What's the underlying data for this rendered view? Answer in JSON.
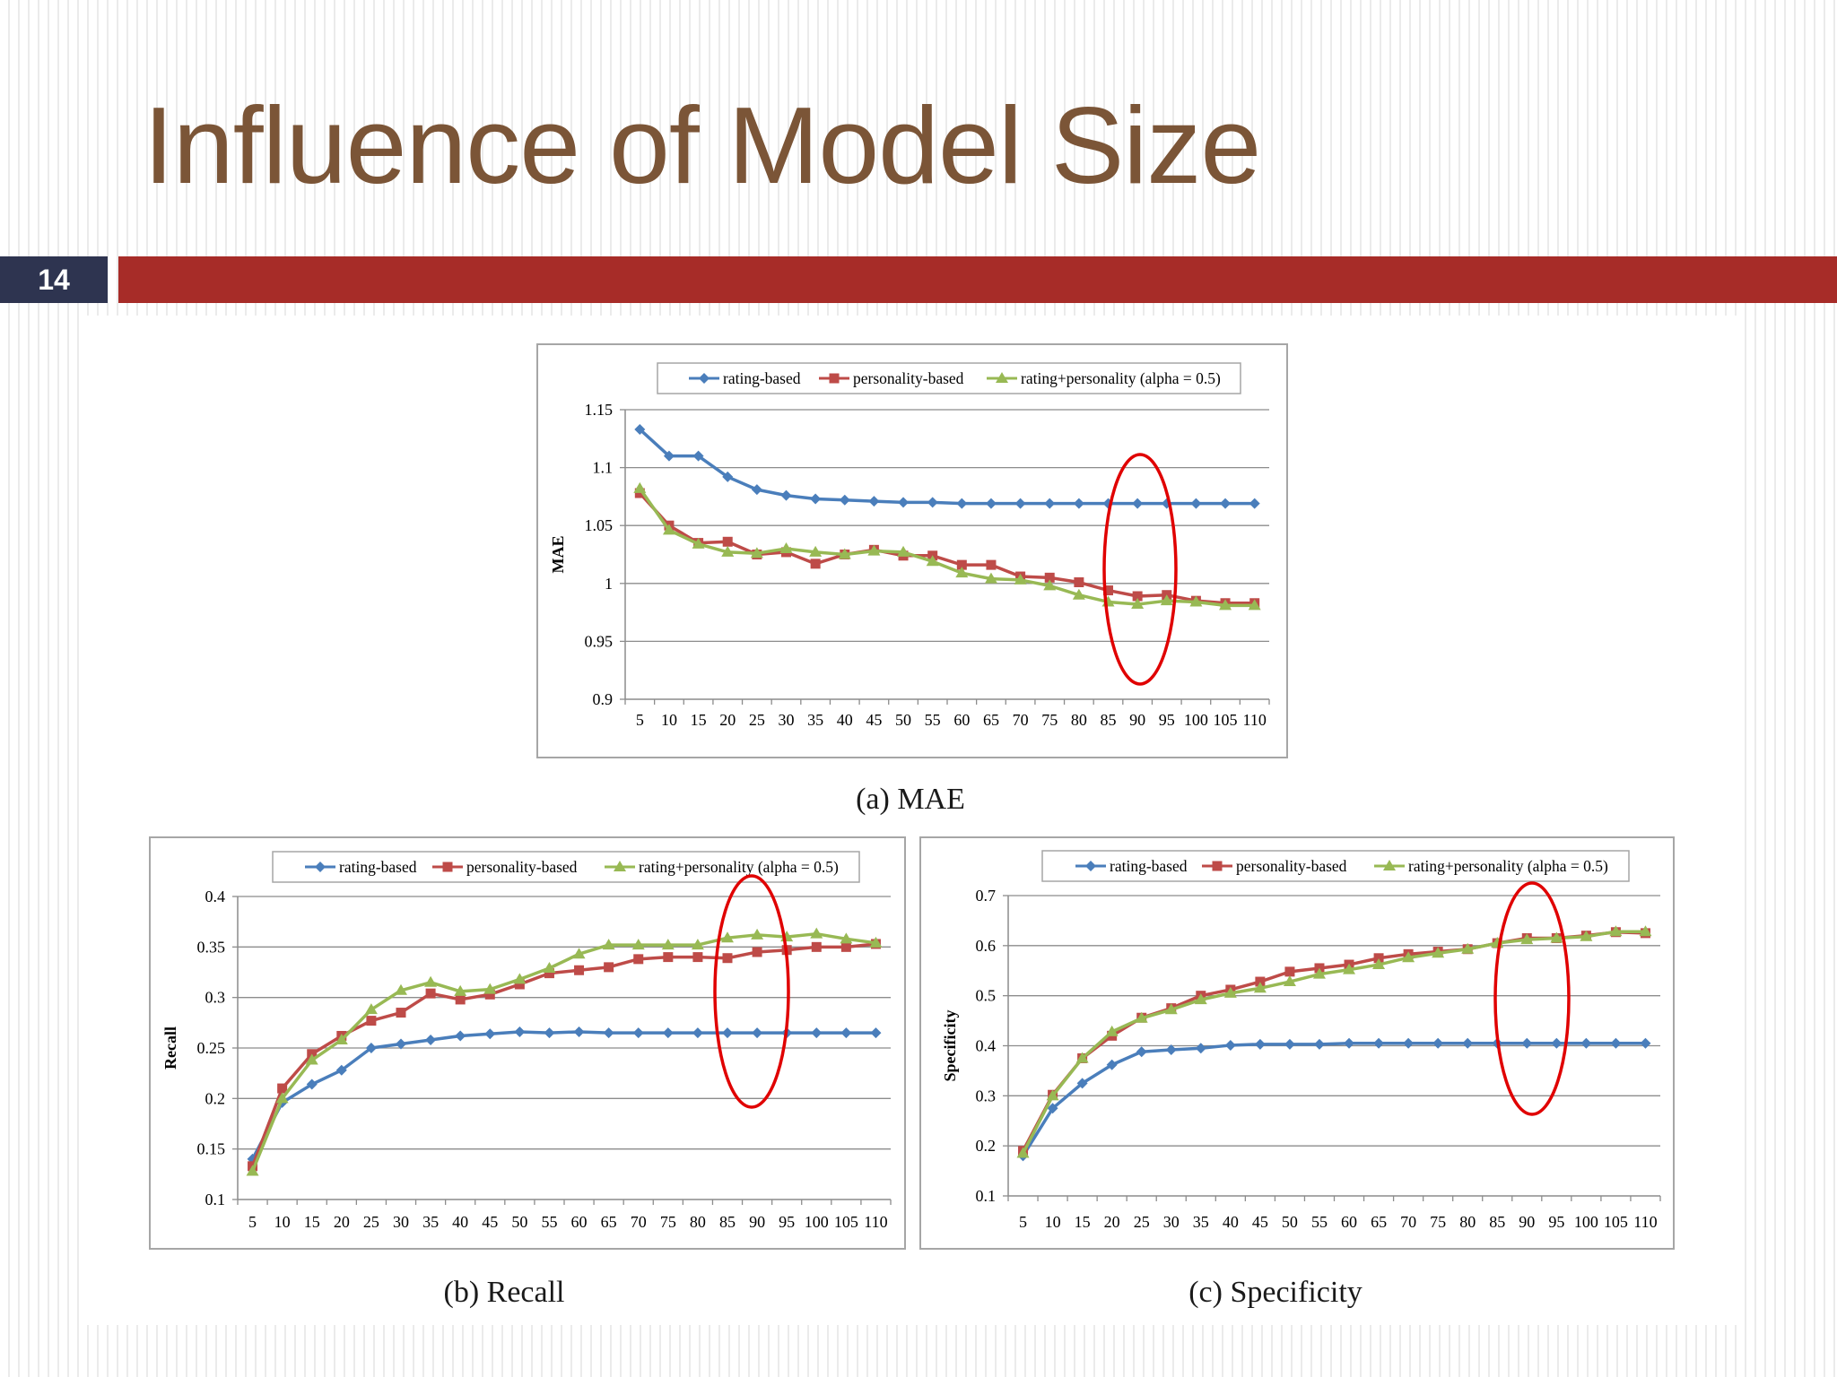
{
  "slide": {
    "title": "Influence of Model Size",
    "number": "14"
  },
  "colors": {
    "title": "#7b5537",
    "number_badge": "#2e3450",
    "title_bar": "#a72c28",
    "rating_based": "#4a7ebb",
    "personality_based": "#be4b48",
    "rating_personality": "#98b954",
    "highlight": "#e00000"
  },
  "chart_data": [
    {
      "type": "line",
      "caption": "(a) MAE",
      "ylabel": "MAE",
      "xlabel": "",
      "categories": [
        "5",
        "10",
        "15",
        "20",
        "25",
        "30",
        "35",
        "40",
        "45",
        "50",
        "55",
        "60",
        "65",
        "70",
        "75",
        "80",
        "85",
        "90",
        "95",
        "100",
        "105",
        "110"
      ],
      "y_ticks": [
        "0.9",
        "0.95",
        "1",
        "1.05",
        "1.1",
        "1.15"
      ],
      "ylim": [
        0.9,
        1.15
      ],
      "grid": true,
      "legend_position": "top",
      "highlight_category": "90",
      "series": [
        {
          "name": "rating-based",
          "marker": "diamond",
          "values": [
            1.133,
            1.11,
            1.11,
            1.092,
            1.081,
            1.076,
            1.073,
            1.072,
            1.071,
            1.07,
            1.07,
            1.069,
            1.069,
            1.069,
            1.069,
            1.069,
            1.069,
            1.069,
            1.069,
            1.069,
            1.069,
            1.069
          ]
        },
        {
          "name": "personality-based",
          "marker": "square",
          "values": [
            1.078,
            1.05,
            1.035,
            1.036,
            1.025,
            1.027,
            1.017,
            1.025,
            1.029,
            1.024,
            1.024,
            1.016,
            1.016,
            1.006,
            1.005,
            1.001,
            0.994,
            0.989,
            0.99,
            0.985,
            0.983,
            0.983
          ]
        },
        {
          "name": "rating+personality (alpha = 0.5)",
          "marker": "triangle",
          "values": [
            1.082,
            1.046,
            1.034,
            1.027,
            1.026,
            1.03,
            1.027,
            1.025,
            1.028,
            1.027,
            1.019,
            1.009,
            1.004,
            1.003,
            0.998,
            0.99,
            0.984,
            0.982,
            0.985,
            0.984,
            0.981,
            0.981
          ]
        }
      ]
    },
    {
      "type": "line",
      "caption": "(b) Recall",
      "ylabel": "Recall",
      "xlabel": "",
      "categories": [
        "5",
        "10",
        "15",
        "20",
        "25",
        "30",
        "35",
        "40",
        "45",
        "50",
        "55",
        "60",
        "65",
        "70",
        "75",
        "80",
        "85",
        "90",
        "95",
        "100",
        "105",
        "110"
      ],
      "y_ticks": [
        "0.1",
        "0.15",
        "0.2",
        "0.25",
        "0.3",
        "0.35",
        "0.4"
      ],
      "ylim": [
        0.1,
        0.4
      ],
      "grid": true,
      "legend_position": "top",
      "highlight_category": "90",
      "series": [
        {
          "name": "rating-based",
          "marker": "diamond",
          "values": [
            0.14,
            0.196,
            0.214,
            0.228,
            0.25,
            0.254,
            0.258,
            0.262,
            0.264,
            0.266,
            0.265,
            0.266,
            0.265,
            0.265,
            0.265,
            0.265,
            0.265,
            0.265,
            0.265,
            0.265,
            0.265,
            0.265
          ]
        },
        {
          "name": "personality-based",
          "marker": "square",
          "values": [
            0.133,
            0.21,
            0.244,
            0.262,
            0.277,
            0.285,
            0.304,
            0.298,
            0.303,
            0.313,
            0.324,
            0.327,
            0.33,
            0.338,
            0.34,
            0.34,
            0.339,
            0.345,
            0.347,
            0.35,
            0.35,
            0.353
          ]
        },
        {
          "name": "rating+personality (alpha = 0.5)",
          "marker": "triangle",
          "values": [
            0.128,
            0.2,
            0.238,
            0.258,
            0.288,
            0.307,
            0.315,
            0.306,
            0.308,
            0.318,
            0.329,
            0.343,
            0.352,
            0.352,
            0.352,
            0.352,
            0.359,
            0.362,
            0.36,
            0.363,
            0.358,
            0.354
          ]
        }
      ]
    },
    {
      "type": "line",
      "caption": "(c) Specificity",
      "ylabel": "Specificity",
      "xlabel": "",
      "categories": [
        "5",
        "10",
        "15",
        "20",
        "25",
        "30",
        "35",
        "40",
        "45",
        "50",
        "55",
        "60",
        "65",
        "70",
        "75",
        "80",
        "85",
        "90",
        "95",
        "100",
        "105",
        "110"
      ],
      "y_ticks": [
        "0.1",
        "0.2",
        "0.3",
        "0.4",
        "0.5",
        "0.6",
        "0.7"
      ],
      "ylim": [
        0.1,
        0.7
      ],
      "grid": true,
      "legend_position": "top",
      "highlight_category": "90",
      "series": [
        {
          "name": "rating-based",
          "marker": "diamond",
          "values": [
            0.18,
            0.275,
            0.325,
            0.362,
            0.388,
            0.392,
            0.395,
            0.401,
            0.403,
            0.403,
            0.403,
            0.405,
            0.405,
            0.405,
            0.405,
            0.405,
            0.405,
            0.405,
            0.405,
            0.405,
            0.405,
            0.405
          ]
        },
        {
          "name": "personality-based",
          "marker": "square",
          "values": [
            0.19,
            0.302,
            0.375,
            0.42,
            0.456,
            0.475,
            0.5,
            0.512,
            0.528,
            0.548,
            0.555,
            0.562,
            0.575,
            0.583,
            0.588,
            0.593,
            0.605,
            0.615,
            0.615,
            0.62,
            0.627,
            0.625
          ]
        },
        {
          "name": "rating+personality (alpha = 0.5)",
          "marker": "triangle",
          "values": [
            0.185,
            0.3,
            0.375,
            0.428,
            0.455,
            0.472,
            0.492,
            0.505,
            0.515,
            0.528,
            0.543,
            0.552,
            0.562,
            0.576,
            0.585,
            0.593,
            0.605,
            0.612,
            0.615,
            0.618,
            0.628,
            0.628
          ]
        }
      ]
    }
  ]
}
